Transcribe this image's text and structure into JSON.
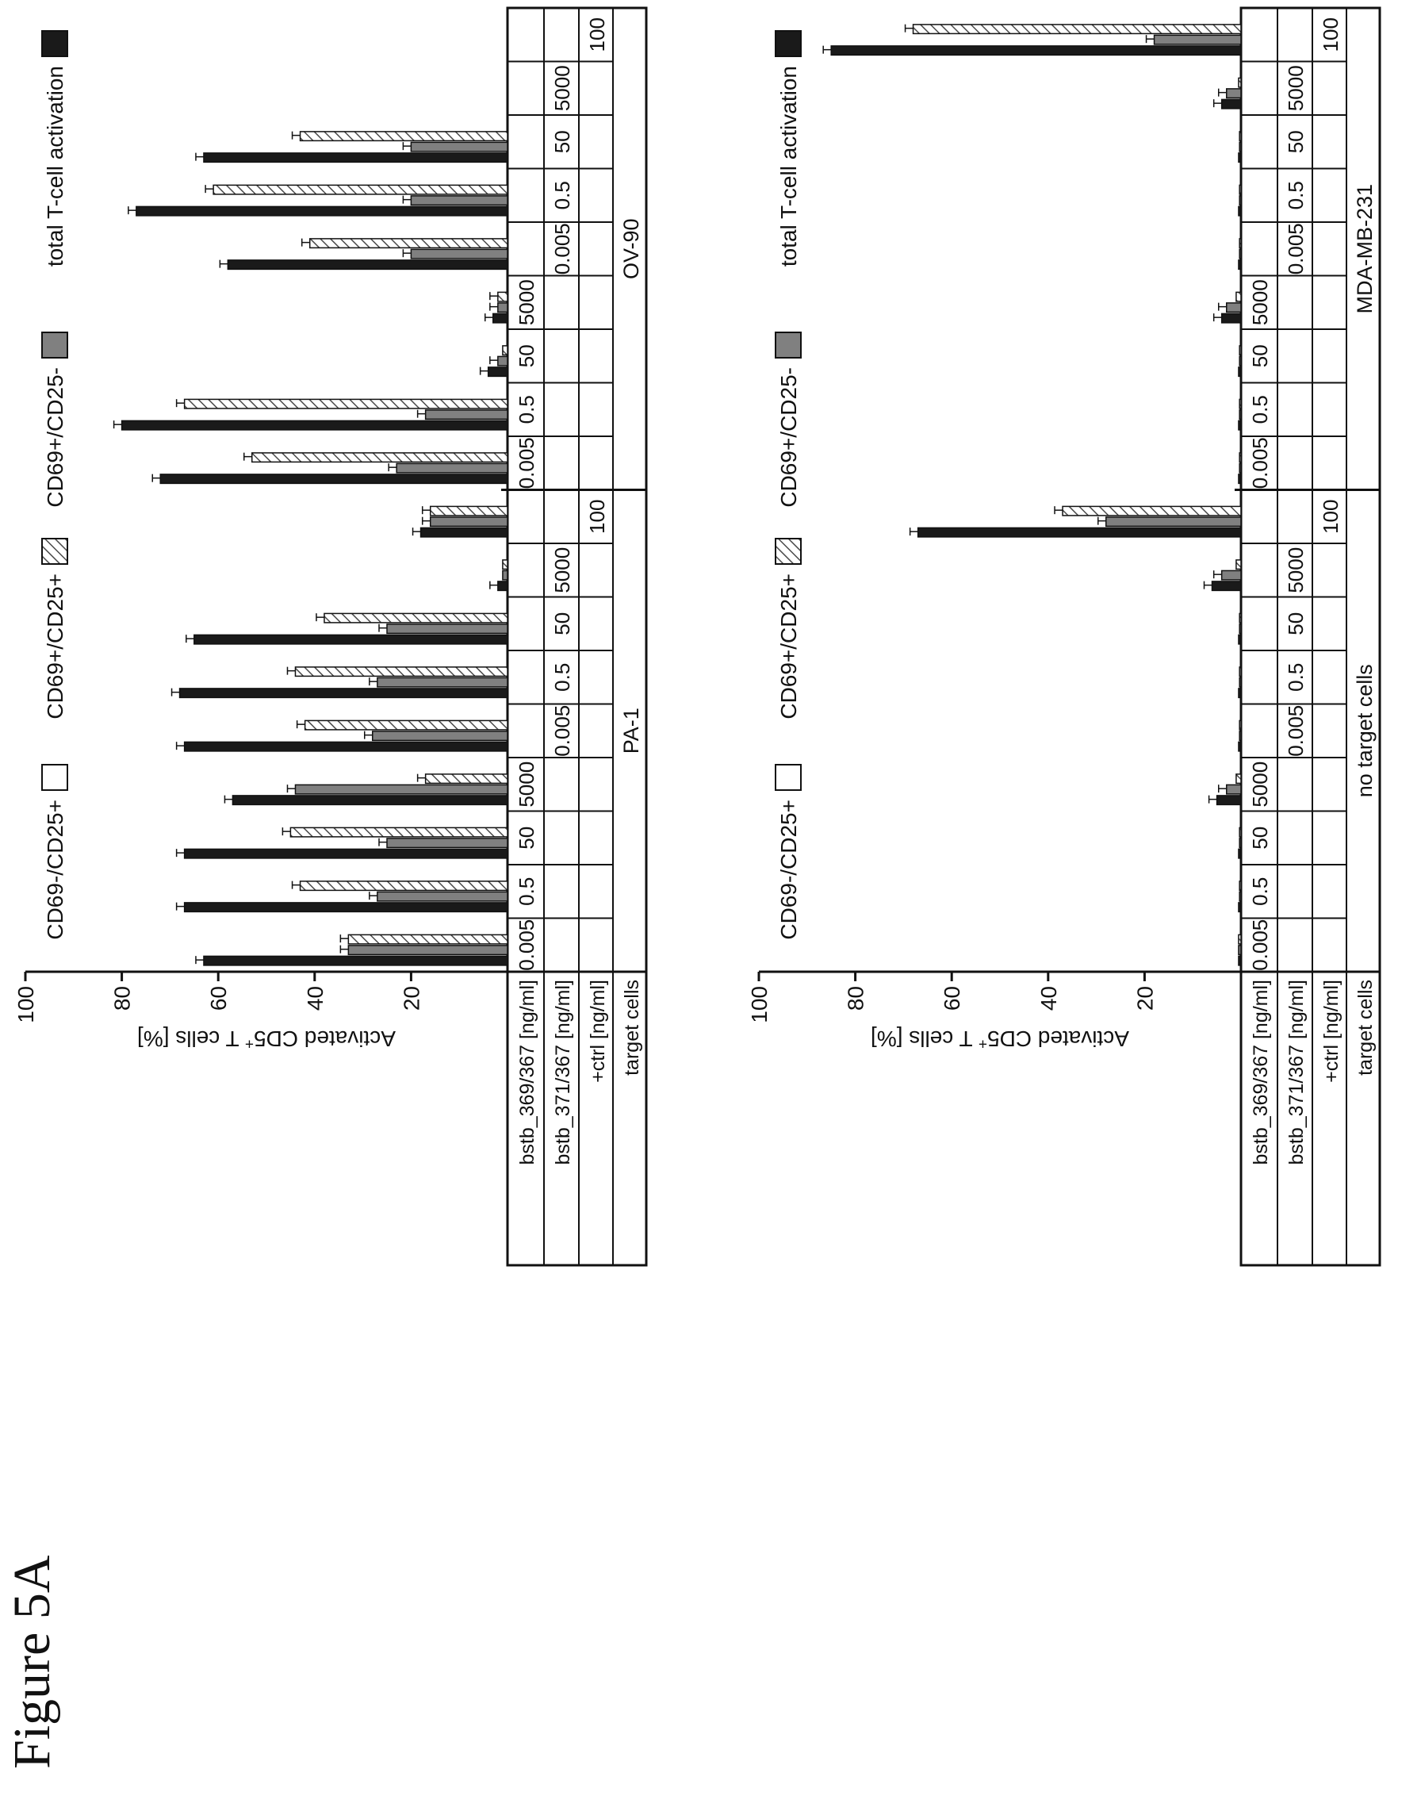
{
  "figure_title": "Figure 5A",
  "colors": {
    "total": "#1a1a1a",
    "cd69_pos_cd25_neg": "#808080",
    "cd69_pos_cd25_pos_hatch": "#555555",
    "cd69_neg_cd25_pos": "#ffffff"
  },
  "chart_data": [
    {
      "type": "bar",
      "ylabel": "Activated CD5+ T cells [%]",
      "ylabel_main": "Activated CD5",
      "ylabel_sup": "+",
      "ylabel_tail": " T cells [%]",
      "ylim": [
        0,
        100
      ],
      "yticks": [
        "20",
        "40",
        "60",
        "80",
        "100"
      ],
      "legend": [
        {
          "key": "total",
          "label": "total T-cell activation"
        },
        {
          "key": "cd69_pos_cd25_neg",
          "label": "CD69+/CD25-"
        },
        {
          "key": "cd69_pos_cd25_pos",
          "label": "CD69+/CD25+"
        },
        {
          "key": "cd69_neg_cd25_pos",
          "label": "CD69-/CD25+"
        }
      ],
      "table_row_labels": [
        "bstb_369/367 [ng/ml]",
        "bstb_371/367 [ng/ml]",
        "+ctrl [ng/ml]",
        "target cells"
      ],
      "groups": [
        {
          "row1": "0.005",
          "row2": "",
          "row3": "",
          "values": [
            63,
            33,
            33,
            0
          ]
        },
        {
          "row1": "0.5",
          "row2": "",
          "row3": "",
          "values": [
            67,
            27,
            43,
            0
          ]
        },
        {
          "row1": "50",
          "row2": "",
          "row3": "",
          "values": [
            67,
            25,
            45,
            0
          ]
        },
        {
          "row1": "5000",
          "row2": "",
          "row3": "",
          "values": [
            57,
            44,
            17,
            0
          ]
        },
        {
          "row1": "",
          "row2": "0.005",
          "row3": "",
          "values": [
            67,
            28,
            42,
            0
          ]
        },
        {
          "row1": "",
          "row2": "0.5",
          "row3": "",
          "values": [
            68,
            27,
            44,
            0
          ]
        },
        {
          "row1": "",
          "row2": "50",
          "row3": "",
          "values": [
            65,
            25,
            38,
            0
          ]
        },
        {
          "row1": "",
          "row2": "5000",
          "row3": "",
          "values": [
            2,
            1,
            1,
            0
          ]
        },
        {
          "row1": "",
          "row2": "",
          "row3": "100",
          "values": [
            18,
            16,
            16,
            0
          ]
        },
        {
          "row1": "0.005",
          "row2": "",
          "row3": "",
          "values": [
            72,
            23,
            53,
            0
          ]
        },
        {
          "row1": "0.5",
          "row2": "",
          "row3": "",
          "values": [
            80,
            17,
            67,
            0
          ]
        },
        {
          "row1": "50",
          "row2": "",
          "row3": "",
          "values": [
            4,
            2,
            1,
            0
          ]
        },
        {
          "row1": "5000",
          "row2": "",
          "row3": "",
          "values": [
            3,
            2,
            2,
            0
          ]
        },
        {
          "row1": "",
          "row2": "0.005",
          "row3": "",
          "values": [
            58,
            20,
            41,
            0
          ]
        },
        {
          "row1": "",
          "row2": "0.5",
          "row3": "",
          "values": [
            77,
            20,
            61,
            0
          ]
        },
        {
          "row1": "",
          "row2": "50",
          "row3": "",
          "values": [
            63,
            20,
            43,
            0
          ]
        },
        {
          "row1": "",
          "row2": "5000",
          "row3": "",
          "values": [
            0,
            0,
            0,
            0
          ]
        },
        {
          "row1": "",
          "row2": "",
          "row3": "100",
          "values": [
            0,
            0,
            0,
            0
          ]
        }
      ],
      "target_cells": [
        {
          "label": "PA-1"
        },
        {
          "label": "OV-90"
        }
      ]
    },
    {
      "type": "bar",
      "ylabel": "Activated CD5+ T cells [%]",
      "ylabel_main": "Activated CD5",
      "ylabel_sup": "+",
      "ylabel_tail": " T cells [%]",
      "ylim": [
        0,
        100
      ],
      "yticks": [
        "20",
        "40",
        "60",
        "80",
        "100"
      ],
      "legend": [
        {
          "key": "total",
          "label": "total T-cell activation"
        },
        {
          "key": "cd69_pos_cd25_neg",
          "label": "CD69+/CD25-"
        },
        {
          "key": "cd69_pos_cd25_pos",
          "label": "CD69+/CD25+"
        },
        {
          "key": "cd69_neg_cd25_pos",
          "label": "CD69-/CD25+"
        }
      ],
      "table_row_labels": [
        "bstb_369/367 [ng/ml]",
        "bstb_371/367 [ng/ml]",
        "+ctrl [ng/ml]",
        "target cells"
      ],
      "groups": [
        {
          "row1": "0.005",
          "row2": "",
          "row3": "",
          "values": [
            0.5,
            0.5,
            0.5,
            0
          ]
        },
        {
          "row1": "0.5",
          "row2": "",
          "row3": "",
          "values": [
            0.5,
            0.3,
            0.3,
            0
          ]
        },
        {
          "row1": "50",
          "row2": "",
          "row3": "",
          "values": [
            0.5,
            0.3,
            0.3,
            0
          ]
        },
        {
          "row1": "5000",
          "row2": "",
          "row3": "",
          "values": [
            5,
            3,
            1,
            0
          ]
        },
        {
          "row1": "",
          "row2": "0.005",
          "row3": "",
          "values": [
            0.5,
            0.3,
            0.3,
            0
          ]
        },
        {
          "row1": "",
          "row2": "0.5",
          "row3": "",
          "values": [
            0.5,
            0.3,
            0.3,
            0
          ]
        },
        {
          "row1": "",
          "row2": "50",
          "row3": "",
          "values": [
            0.5,
            0.3,
            0.3,
            0
          ]
        },
        {
          "row1": "",
          "row2": "5000",
          "row3": "",
          "values": [
            6,
            4,
            1,
            0
          ]
        },
        {
          "row1": "",
          "row2": "",
          "row3": "100",
          "values": [
            67,
            28,
            37,
            0
          ]
        },
        {
          "row1": "0.005",
          "row2": "",
          "row3": "",
          "values": [
            0.5,
            0.3,
            0.3,
            0
          ]
        },
        {
          "row1": "0.5",
          "row2": "",
          "row3": "",
          "values": [
            0.5,
            0.3,
            0.3,
            0
          ]
        },
        {
          "row1": "50",
          "row2": "",
          "row3": "",
          "values": [
            0.5,
            0.3,
            0.3,
            0
          ]
        },
        {
          "row1": "5000",
          "row2": "",
          "row3": "",
          "values": [
            4,
            3,
            1,
            0
          ]
        },
        {
          "row1": "",
          "row2": "0.005",
          "row3": "",
          "values": [
            0.5,
            0.3,
            0.3,
            0
          ]
        },
        {
          "row1": "",
          "row2": "0.5",
          "row3": "",
          "values": [
            0.5,
            0.3,
            0.3,
            0
          ]
        },
        {
          "row1": "",
          "row2": "50",
          "row3": "",
          "values": [
            0.5,
            0.3,
            0.3,
            0
          ]
        },
        {
          "row1": "",
          "row2": "5000",
          "row3": "",
          "values": [
            4,
            3,
            0.5,
            0
          ]
        },
        {
          "row1": "",
          "row2": "",
          "row3": "100",
          "values": [
            85,
            18,
            68,
            0
          ]
        }
      ],
      "target_cells": [
        {
          "label": "no target cells"
        },
        {
          "label": "MDA-MB-231"
        }
      ]
    }
  ]
}
